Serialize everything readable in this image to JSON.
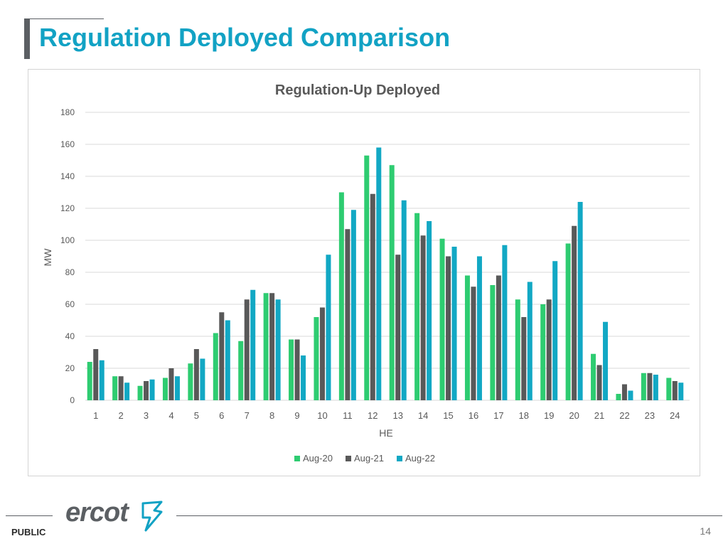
{
  "page": {
    "title": "Regulation Deployed Comparison",
    "footer_label": "PUBLIC",
    "page_number": "14",
    "logo_text": "ercot"
  },
  "colors": {
    "title": "#12a2c4",
    "aug20": "#2ecc71",
    "aug21": "#595959",
    "aug22": "#12a8c4",
    "grid": "#d9d9d9",
    "axis_text": "#595959"
  },
  "chart_data": {
    "type": "bar",
    "title": "Regulation-Up Deployed",
    "xlabel": "HE",
    "ylabel": "MW",
    "ylim": [
      0,
      180
    ],
    "yticks": [
      0,
      20,
      40,
      60,
      80,
      100,
      120,
      140,
      160,
      180
    ],
    "grid": true,
    "legend_position": "bottom",
    "categories": [
      "1",
      "2",
      "3",
      "4",
      "5",
      "6",
      "7",
      "8",
      "9",
      "10",
      "11",
      "12",
      "13",
      "14",
      "15",
      "16",
      "17",
      "18",
      "19",
      "20",
      "21",
      "22",
      "23",
      "24"
    ],
    "series": [
      {
        "name": "Aug-20",
        "values": [
          24,
          15,
          9,
          14,
          23,
          42,
          37,
          67,
          38,
          52,
          130,
          153,
          147,
          117,
          101,
          78,
          72,
          63,
          60,
          98,
          29,
          4,
          17,
          14
        ]
      },
      {
        "name": "Aug-21",
        "values": [
          32,
          15,
          12,
          20,
          32,
          55,
          63,
          67,
          38,
          58,
          107,
          129,
          91,
          103,
          90,
          71,
          78,
          52,
          63,
          109,
          22,
          10,
          17,
          12
        ]
      },
      {
        "name": "Aug-22",
        "values": [
          25,
          11,
          13,
          15,
          26,
          50,
          69,
          63,
          28,
          91,
          119,
          158,
          125,
          112,
          96,
          90,
          97,
          74,
          87,
          124,
          49,
          6,
          16,
          11
        ]
      }
    ]
  }
}
